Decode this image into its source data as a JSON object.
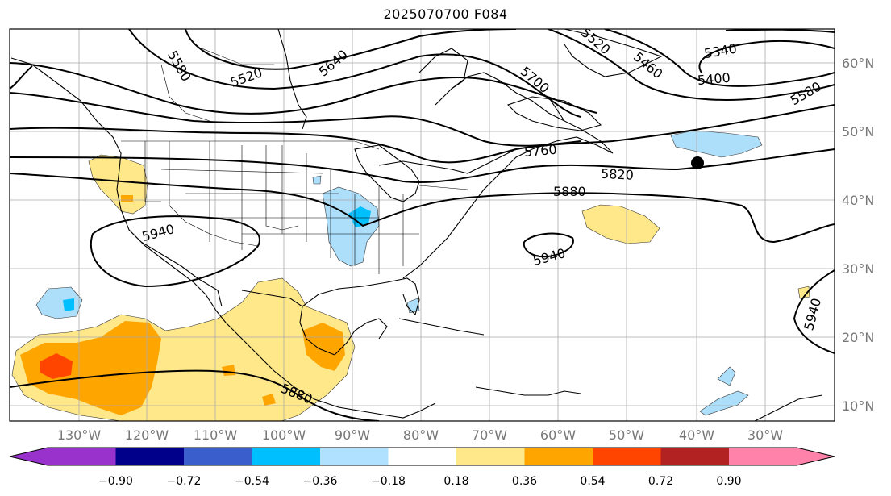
{
  "title": "2025070700 F084",
  "map": {
    "lat_labels": [
      "60°N",
      "50°N",
      "40°N",
      "30°N",
      "20°N",
      "10°N"
    ],
    "lon_labels": [
      "130°W",
      "120°W",
      "110°W",
      "100°W",
      "90°W",
      "80°W",
      "70°W",
      "60°W",
      "50°W",
      "40°W",
      "30°W"
    ],
    "contour_labels": [
      "5580",
      "5520",
      "5640",
      "5520",
      "5460",
      "5340",
      "5400",
      "5580",
      "5700",
      "5760",
      "5820",
      "5880",
      "5940",
      "5940",
      "5940",
      "5880"
    ],
    "field_colors": {
      "positive_light": "#FEE88A",
      "positive_mid": "#FFA500",
      "positive_strong": "#FF4500",
      "negative_light": "#ADDEFA",
      "negative_mid": "#00BFFF"
    },
    "marker_icon": "low-center-marker"
  },
  "colorbar": {
    "ticks": [
      "−0.90",
      "−0.72",
      "−0.54",
      "−0.36",
      "−0.18",
      "0.18",
      "0.36",
      "0.54",
      "0.72",
      "0.90"
    ],
    "colors": [
      "#9932CC",
      "#00008B",
      "#3A5FCD",
      "#00BFFF",
      "#B0E2FF",
      "#FFFFFF",
      "#FEE88A",
      "#FFA500",
      "#FF4500",
      "#B22222",
      "#FF82AB"
    ]
  }
}
